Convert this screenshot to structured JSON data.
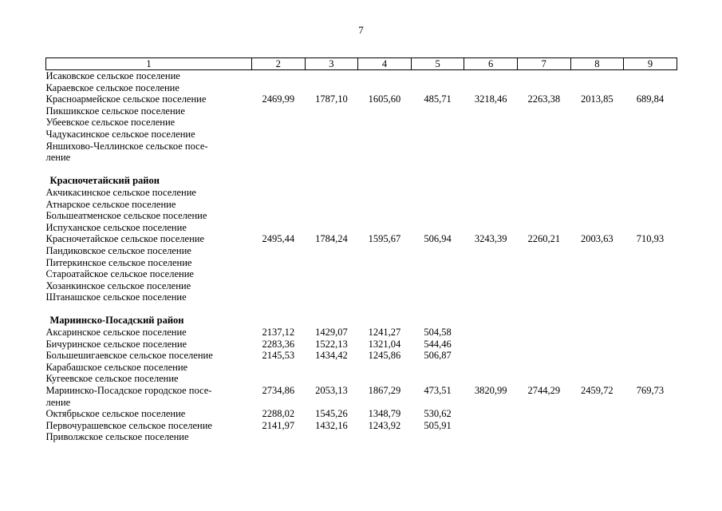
{
  "page": {
    "number": "7"
  },
  "table": {
    "headers": [
      "1",
      "2",
      "3",
      "4",
      "5",
      "6",
      "7",
      "8",
      "9"
    ],
    "rows": [
      {
        "type": "item",
        "label": "Исаковское сельское поселение",
        "values": []
      },
      {
        "type": "item",
        "label": "Караевское сельское поселение",
        "values": []
      },
      {
        "type": "item",
        "label": "Красноармейское сельское поселение",
        "values": [
          "2469,99",
          "1787,10",
          "1605,60",
          "485,71",
          "3218,46",
          "2263,38",
          "2013,85",
          "689,84"
        ]
      },
      {
        "type": "item",
        "label": "Пикшикское сельское поселение",
        "values": []
      },
      {
        "type": "item",
        "label": "Убеевское сельское поселение",
        "values": []
      },
      {
        "type": "item",
        "label": "Чадукасинское сельское поселение",
        "values": []
      },
      {
        "type": "item",
        "label": "Яншихово-Челлинское сельское посе-\nление",
        "values": []
      },
      {
        "type": "spacer"
      },
      {
        "type": "group",
        "label": "Красночетайский район",
        "values": []
      },
      {
        "type": "item",
        "label": "Акчикасинское сельское поселение",
        "values": []
      },
      {
        "type": "item",
        "label": "Атнарское сельское поселение",
        "values": []
      },
      {
        "type": "item",
        "label": "Большеатменское сельское поселение",
        "values": []
      },
      {
        "type": "item",
        "label": "Испуханское сельское поселение",
        "values": []
      },
      {
        "type": "item",
        "label": "Красночетайское сельское поселение",
        "values": [
          "2495,44",
          "1784,24",
          "1595,67",
          "506,94",
          "3243,39",
          "2260,21",
          "2003,63",
          "710,93"
        ]
      },
      {
        "type": "item",
        "label": "Пандиковское сельское поселение",
        "values": []
      },
      {
        "type": "item",
        "label": "Питеркинское сельское поселение",
        "values": []
      },
      {
        "type": "item",
        "label": "Староатайское сельское поселение",
        "values": []
      },
      {
        "type": "item",
        "label": "Хозанкинское сельское поселение",
        "values": []
      },
      {
        "type": "item",
        "label": "Штанашское сельское поселение",
        "values": []
      },
      {
        "type": "spacer"
      },
      {
        "type": "group",
        "label": "Мариинско-Посадский район",
        "values": []
      },
      {
        "type": "item",
        "label": "Аксаринское сельское поселение",
        "values": [
          "2137,12",
          "1429,07",
          "1241,27",
          "504,58",
          "",
          "",
          "",
          ""
        ]
      },
      {
        "type": "item",
        "label": "Бичуринское сельское поселение",
        "values": [
          "2283,36",
          "1522,13",
          "1321,04",
          "544,46",
          "",
          "",
          "",
          ""
        ]
      },
      {
        "type": "item",
        "label": "Большешигаевское сельское поселение",
        "values": [
          "2145,53",
          "1434,42",
          "1245,86",
          "506,87",
          "",
          "",
          "",
          ""
        ]
      },
      {
        "type": "item",
        "label": "Карабашское сельское поселение",
        "values": []
      },
      {
        "type": "item",
        "label": "Кугеевское сельское поселение",
        "values": []
      },
      {
        "type": "item",
        "label": "Мариинско-Посадское городское посе-\nление",
        "values": [
          "2734,86",
          "2053,13",
          "1867,29",
          "473,51",
          "3820,99",
          "2744,29",
          "2459,72",
          "769,73"
        ]
      },
      {
        "type": "item",
        "label": "Октябрьское сельское поселение",
        "values": [
          "2288,02",
          "1545,26",
          "1348,79",
          "530,62",
          "",
          "",
          "",
          ""
        ]
      },
      {
        "type": "item",
        "label": "Первочурашевское сельское поселение",
        "values": [
          "2141,97",
          "1432,16",
          "1243,92",
          "505,91",
          "",
          "",
          "",
          ""
        ]
      },
      {
        "type": "item",
        "label": "Приволжское сельское поселение",
        "values": []
      }
    ]
  }
}
